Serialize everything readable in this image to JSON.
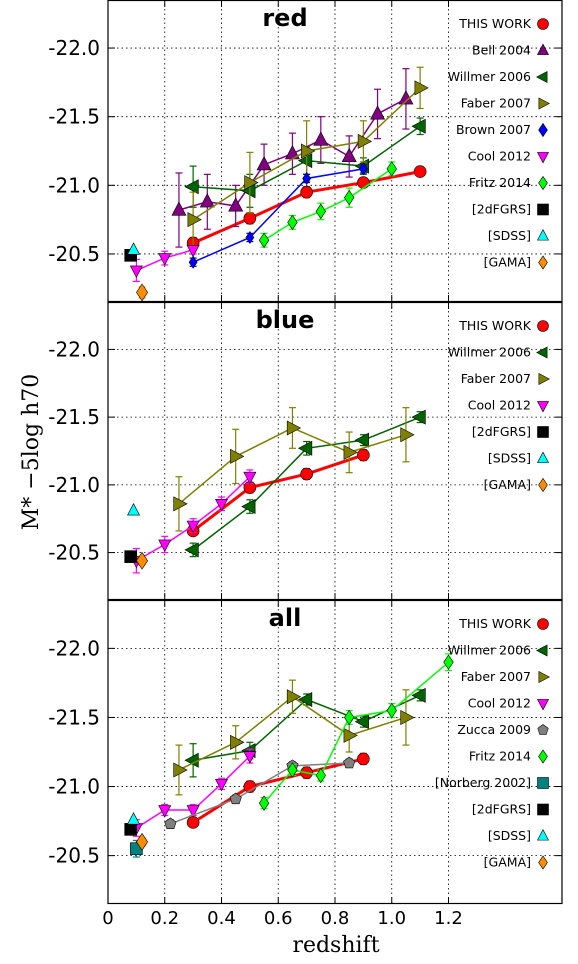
{
  "chart_data": {
    "type": "line",
    "xlabel": "redshift",
    "ylabel": "M* −5log h70",
    "xlim": [
      0,
      1.6
    ],
    "x_ticks": [
      0,
      0.2,
      0.4,
      0.6,
      0.8,
      1.0,
      1.2
    ],
    "x_tick_labels": [
      "0",
      "0.2",
      "0.4",
      "0.6",
      "0.8",
      "1.0",
      "1.2"
    ],
    "y_ticks": [
      -22.0,
      -21.5,
      -21.0,
      -20.5
    ],
    "y_tick_labels": [
      "-22.0",
      "-21.5",
      "-21.0",
      "-20.5"
    ],
    "y_inverted": true,
    "grid": true,
    "legend_placement": "right",
    "panels": [
      {
        "title": "red",
        "ylim": [
          -20.15,
          -22.35
        ],
        "legend": [
          {
            "label": "THIS WORK",
            "color": "#ff0000",
            "marker": "circle"
          },
          {
            "label": "Bell 2004",
            "color": "#800080",
            "marker": "triangle-up"
          },
          {
            "label": "Willmer 2006",
            "color": "#006400",
            "marker": "triangle-left"
          },
          {
            "label": "Faber 2007",
            "color": "#808000",
            "marker": "triangle-right"
          },
          {
            "label": "Brown 2007",
            "color": "#0000ff",
            "marker": "diamond"
          },
          {
            "label": "Cool 2012",
            "color": "#ff00ff",
            "marker": "triangle-down"
          },
          {
            "label": "Fritz 2014",
            "color": "#00ff00",
            "marker": "diamond"
          },
          {
            "label": "[2dFGRS]",
            "color": "#000000",
            "marker": "square"
          },
          {
            "label": "[SDSS]",
            "color": "#00ffff",
            "marker": "triangle-up"
          },
          {
            "label": "[GAMA]",
            "color": "#ff8c00",
            "marker": "diamond"
          }
        ],
        "series": [
          {
            "name": "THIS WORK",
            "color": "#ff0000",
            "marker": "circle",
            "size": 6,
            "lw": 3,
            "x": [
              0.3,
              0.5,
              0.7,
              0.9,
              1.1
            ],
            "y": [
              -20.58,
              -20.76,
              -20.95,
              -21.02,
              -21.1
            ],
            "err": [
              0.04,
              0.04,
              0.04,
              0.03,
              0.03
            ]
          },
          {
            "name": "Bell 2004",
            "color": "#800080",
            "marker": "triangle-up",
            "size": 7,
            "lw": 1.5,
            "x": [
              0.25,
              0.35,
              0.45,
              0.55,
              0.65,
              0.75,
              0.85,
              0.95,
              1.05
            ],
            "y": [
              -20.82,
              -20.88,
              -20.85,
              -21.15,
              -21.23,
              -21.33,
              -21.21,
              -21.52,
              -21.63
            ],
            "err": [
              0.27,
              0.2,
              0.15,
              0.15,
              0.15,
              0.17,
              0.15,
              0.18,
              0.22
            ]
          },
          {
            "name": "Willmer 2006",
            "color": "#006400",
            "marker": "triangle-left",
            "size": 7,
            "lw": 1.5,
            "x": [
              0.3,
              0.5,
              0.7,
              0.9,
              1.1
            ],
            "y": [
              -20.99,
              -20.96,
              -21.18,
              -21.14,
              -21.43
            ],
            "err": [
              0.15,
              0.12,
              0.1,
              0.06,
              0.06
            ]
          },
          {
            "name": "Faber 2007",
            "color": "#808000",
            "marker": "triangle-right",
            "size": 7,
            "lw": 1.5,
            "x": [
              0.3,
              0.5,
              0.7,
              0.9,
              1.1
            ],
            "y": [
              -20.75,
              -21.02,
              -21.25,
              -21.32,
              -21.71
            ],
            "err": [
              0.2,
              0.22,
              0.22,
              0.15,
              0.15
            ]
          },
          {
            "name": "Brown 2007",
            "color": "#0000ff",
            "marker": "diamond",
            "size": 5,
            "lw": 1.5,
            "x": [
              0.3,
              0.5,
              0.7,
              0.9
            ],
            "y": [
              -20.44,
              -20.62,
              -21.05,
              -21.12
            ],
            "err": [
              0.03,
              0.03,
              0.03,
              0.03
            ]
          },
          {
            "name": "Cool 2012",
            "color": "#ff00ff",
            "marker": "triangle-down",
            "size": 6,
            "lw": 1.5,
            "x": [
              0.1,
              0.2,
              0.3
            ],
            "y": [
              -20.38,
              -20.47,
              -20.53
            ],
            "err": [
              0.08,
              0.05,
              0.03
            ]
          },
          {
            "name": "Fritz 2014",
            "color": "#00ff00",
            "marker": "diamond",
            "size": 6,
            "lw": 1.5,
            "x": [
              0.55,
              0.65,
              0.75,
              0.85,
              1.0
            ],
            "y": [
              -20.6,
              -20.73,
              -20.81,
              -20.91,
              -21.12
            ],
            "err": [
              0.05,
              0.05,
              0.06,
              0.07,
              0.05
            ]
          },
          {
            "name": "[2dFGRS]",
            "color": "#000000",
            "marker": "square",
            "size": 6,
            "lw": 0,
            "x": [
              0.08
            ],
            "y": [
              -20.49
            ],
            "err": [
              0
            ]
          },
          {
            "name": "[SDSS]",
            "color": "#00ffff",
            "marker": "triangle-up",
            "size": 6,
            "lw": 0,
            "x": [
              0.09
            ],
            "y": [
              -20.53
            ],
            "err": [
              0
            ]
          },
          {
            "name": "[GAMA]",
            "color": "#ff8c00",
            "marker": "diamond",
            "size": 7,
            "lw": 0,
            "x": [
              0.12
            ],
            "y": [
              -20.22
            ],
            "err": [
              0.04
            ]
          }
        ]
      },
      {
        "title": "blue",
        "ylim": [
          -20.15,
          -22.35
        ],
        "legend": [
          {
            "label": "THIS WORK",
            "color": "#ff0000",
            "marker": "circle"
          },
          {
            "label": "Willmer 2006",
            "color": "#006400",
            "marker": "triangle-left"
          },
          {
            "label": "Faber 2007",
            "color": "#808000",
            "marker": "triangle-right"
          },
          {
            "label": "Cool 2012",
            "color": "#ff00ff",
            "marker": "triangle-down"
          },
          {
            "label": "[2dFGRS]",
            "color": "#000000",
            "marker": "square"
          },
          {
            "label": "[SDSS]",
            "color": "#00ffff",
            "marker": "triangle-up"
          },
          {
            "label": "[GAMA]",
            "color": "#ff8c00",
            "marker": "diamond"
          }
        ],
        "series": [
          {
            "name": "THIS WORK",
            "color": "#ff0000",
            "marker": "circle",
            "size": 6,
            "lw": 3,
            "x": [
              0.3,
              0.5,
              0.7,
              0.9
            ],
            "y": [
              -20.66,
              -20.98,
              -21.08,
              -21.22
            ],
            "err": [
              0.03,
              0.04,
              0.04,
              0.04
            ]
          },
          {
            "name": "Willmer 2006",
            "color": "#006400",
            "marker": "triangle-left",
            "size": 7,
            "lw": 1.5,
            "x": [
              0.3,
              0.5,
              0.7,
              0.9,
              1.1
            ],
            "y": [
              -20.52,
              -20.84,
              -21.27,
              -21.33,
              -21.5
            ],
            "err": [
              0.05,
              0.05,
              0.05,
              0.04,
              0.04
            ]
          },
          {
            "name": "Faber 2007",
            "color": "#808000",
            "marker": "triangle-right",
            "size": 7,
            "lw": 1.5,
            "x": [
              0.25,
              0.45,
              0.65,
              0.85,
              1.05
            ],
            "y": [
              -20.86,
              -21.21,
              -21.42,
              -21.24,
              -21.37
            ],
            "err": [
              0.2,
              0.2,
              0.15,
              0.15,
              0.2
            ]
          },
          {
            "name": "Cool 2012",
            "color": "#ff00ff",
            "marker": "triangle-down",
            "size": 6,
            "lw": 1.5,
            "x": [
              0.1,
              0.2,
              0.3,
              0.4,
              0.5
            ],
            "y": [
              -20.44,
              -20.56,
              -20.7,
              -20.86,
              -21.06
            ],
            "err": [
              0.09,
              0.06,
              0.05,
              0.05,
              0.05
            ]
          },
          {
            "name": "[2dFGRS]",
            "color": "#000000",
            "marker": "square",
            "size": 6,
            "lw": 0,
            "x": [
              0.08
            ],
            "y": [
              -20.47
            ],
            "err": [
              0
            ]
          },
          {
            "name": "[SDSS]",
            "color": "#00ffff",
            "marker": "triangle-up",
            "size": 6,
            "lw": 0,
            "x": [
              0.09
            ],
            "y": [
              -20.81
            ],
            "err": [
              0
            ]
          },
          {
            "name": "[GAMA]",
            "color": "#ff8c00",
            "marker": "diamond",
            "size": 7,
            "lw": 0,
            "x": [
              0.12
            ],
            "y": [
              -20.44
            ],
            "err": [
              0.03
            ]
          }
        ]
      },
      {
        "title": "all",
        "ylim": [
          -20.15,
          -22.35
        ],
        "legend": [
          {
            "label": "THIS WORK",
            "color": "#ff0000",
            "marker": "circle"
          },
          {
            "label": "Willmer 2006",
            "color": "#006400",
            "marker": "triangle-left"
          },
          {
            "label": "Faber 2007",
            "color": "#808000",
            "marker": "triangle-right"
          },
          {
            "label": "Cool 2012",
            "color": "#ff00ff",
            "marker": "triangle-down"
          },
          {
            "label": "Zucca 2009",
            "color": "#808080",
            "marker": "pentagon"
          },
          {
            "label": "Fritz 2014",
            "color": "#00ff00",
            "marker": "diamond"
          },
          {
            "label": "[Norberg 2002]",
            "color": "#008080",
            "marker": "square"
          },
          {
            "label": "[2dFGRS]",
            "color": "#000000",
            "marker": "square"
          },
          {
            "label": "[SDSS]",
            "color": "#00ffff",
            "marker": "triangle-up"
          },
          {
            "label": "[GAMA]",
            "color": "#ff8c00",
            "marker": "diamond"
          }
        ],
        "series": [
          {
            "name": "THIS WORK",
            "color": "#ff0000",
            "marker": "circle",
            "size": 6,
            "lw": 3,
            "x": [
              0.3,
              0.5,
              0.7,
              0.9
            ],
            "y": [
              -20.74,
              -21.0,
              -21.1,
              -21.2
            ],
            "err": [
              0.03,
              0.04,
              0.04,
              0.04
            ]
          },
          {
            "name": "Willmer 2006",
            "color": "#006400",
            "marker": "triangle-left",
            "size": 7,
            "lw": 1.5,
            "x": [
              0.3,
              0.5,
              0.7,
              0.9,
              1.1
            ],
            "y": [
              -21.19,
              -21.26,
              -21.63,
              -21.47,
              -21.66
            ],
            "err": [
              0.12,
              0.06,
              0.04,
              0.04,
              0.04
            ]
          },
          {
            "name": "Faber 2007",
            "color": "#808000",
            "marker": "triangle-right",
            "size": 7,
            "lw": 1.5,
            "x": [
              0.25,
              0.45,
              0.65,
              0.85,
              1.05
            ],
            "y": [
              -21.12,
              -21.32,
              -21.65,
              -21.37,
              -21.5
            ],
            "err": [
              0.18,
              0.12,
              0.12,
              0.12,
              0.2
            ]
          },
          {
            "name": "Cool 2012",
            "color": "#ff00ff",
            "marker": "triangle-down",
            "size": 6,
            "lw": 1.5,
            "x": [
              0.1,
              0.2,
              0.3,
              0.4,
              0.5
            ],
            "y": [
              -20.7,
              -20.83,
              -20.83,
              -21.02,
              -21.22
            ],
            "err": [
              0.06,
              0.04,
              0.04,
              0.04,
              0.05
            ]
          },
          {
            "name": "Zucca 2009",
            "color": "#808080",
            "marker": "pentagon",
            "size": 6,
            "lw": 1.5,
            "x": [
              0.22,
              0.45,
              0.65,
              0.85
            ],
            "y": [
              -20.73,
              -20.91,
              -21.15,
              -21.17
            ],
            "err": [
              0.03,
              0.03,
              0.03,
              0.03
            ]
          },
          {
            "name": "Fritz 2014",
            "color": "#00ff00",
            "marker": "diamond",
            "size": 6,
            "lw": 1.5,
            "x": [
              0.55,
              0.65,
              0.75,
              0.85,
              1.0,
              1.2
            ],
            "y": [
              -20.88,
              -21.12,
              -21.08,
              -21.5,
              -21.55,
              -21.9
            ],
            "err": [
              0.04,
              0.04,
              0.04,
              0.05,
              0.05,
              0.06
            ]
          },
          {
            "name": "[Norberg 2002]",
            "color": "#008080",
            "marker": "square",
            "size": 6,
            "lw": 0,
            "x": [
              0.1
            ],
            "y": [
              -20.55
            ],
            "err": [
              0.06
            ]
          },
          {
            "name": "[2dFGRS]",
            "color": "#000000",
            "marker": "square",
            "size": 6,
            "lw": 0,
            "x": [
              0.08
            ],
            "y": [
              -20.69
            ],
            "err": [
              0
            ]
          },
          {
            "name": "[SDSS]",
            "color": "#00ffff",
            "marker": "triangle-up",
            "size": 6,
            "lw": 0,
            "x": [
              0.09
            ],
            "y": [
              -20.76
            ],
            "err": [
              0
            ]
          },
          {
            "name": "[GAMA]",
            "color": "#ff8c00",
            "marker": "diamond",
            "size": 7,
            "lw": 0,
            "x": [
              0.12
            ],
            "y": [
              -20.6
            ],
            "err": [
              0.03
            ]
          }
        ]
      }
    ]
  }
}
